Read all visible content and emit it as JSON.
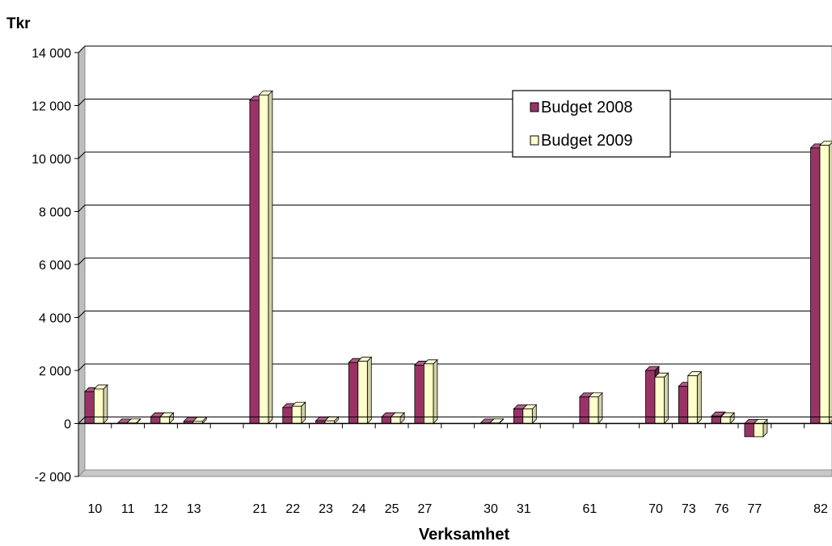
{
  "chart_data": {
    "type": "bar",
    "unit_label": "Tkr",
    "xlabel": "Verksamhet",
    "ylim": [
      -2000,
      14000
    ],
    "yticks": [
      -2000,
      0,
      2000,
      4000,
      6000,
      8000,
      10000,
      12000,
      14000
    ],
    "ytick_labels": [
      "-2 000",
      "0",
      "2 000",
      "4 000",
      "6 000",
      "8 000",
      "10 000",
      "12 000",
      "14 000"
    ],
    "grid": true,
    "legend_position": "top-right",
    "categories": [
      "10",
      "11",
      "12",
      "13",
      "21",
      "22",
      "23",
      "24",
      "25",
      "27",
      "30",
      "31",
      "61",
      "70",
      "73",
      "76",
      "77",
      "82"
    ],
    "series": [
      {
        "name": "Budget 2008",
        "color": "#993366",
        "values": [
          1200,
          20,
          250,
          80,
          12200,
          600,
          100,
          2300,
          250,
          2200,
          20,
          550,
          1000,
          2000,
          1400,
          280,
          -500,
          10400
        ]
      },
      {
        "name": "Budget 2009",
        "color": "#ffffcc",
        "values": [
          1300,
          20,
          250,
          80,
          12400,
          650,
          100,
          2350,
          250,
          2250,
          20,
          550,
          1000,
          1750,
          1800,
          250,
          -500,
          10500
        ]
      }
    ]
  }
}
